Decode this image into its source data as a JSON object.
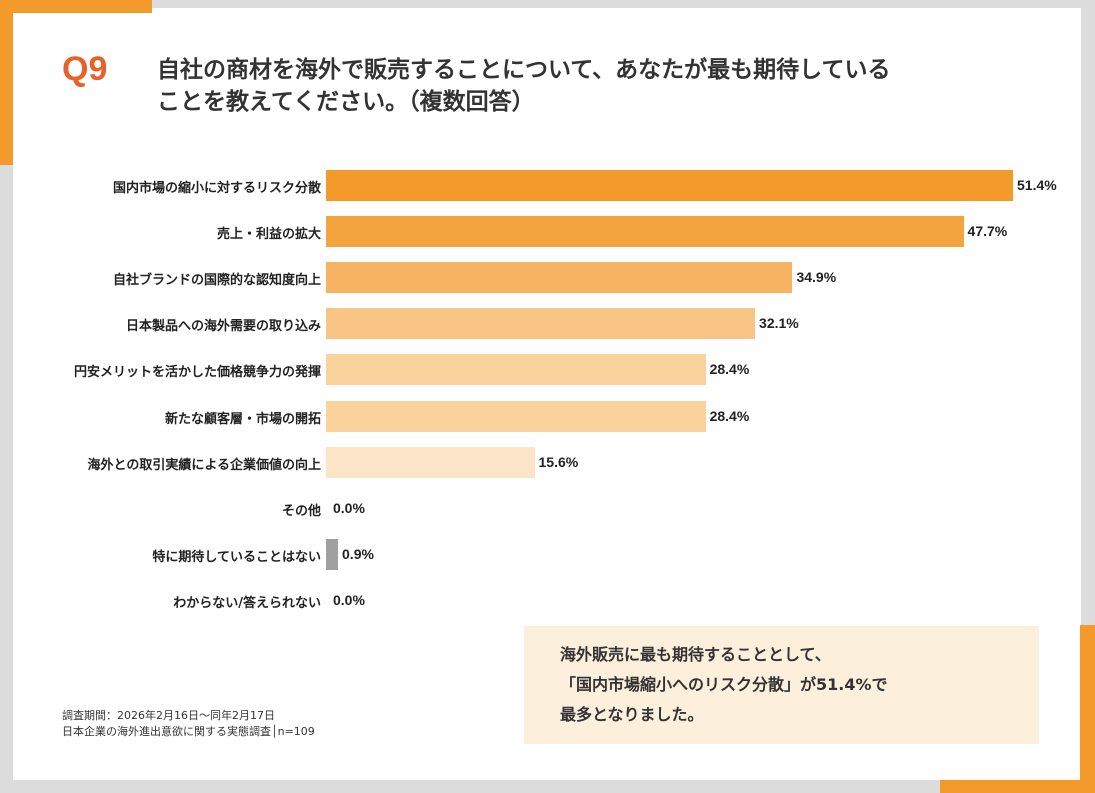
{
  "question_number": "Q9",
  "title_line1": "自社の商材を海外で販売することについて、あなたが最も期待している",
  "title_line2": "ことを教えてください。（複数回答）",
  "chart_data": {
    "type": "bar",
    "orientation": "horizontal",
    "categories": [
      "国内市場の縮小に対するリスク分散",
      "売上・利益の拡大",
      "自社ブランドの国際的な認知度向上",
      "日本製品への海外需要の取り込み",
      "円安メリットを活かした価格競争力の発揮",
      "新たな顧客層・市場の開拓",
      "海外との取引実績による企業価値の向上",
      "その他",
      "特に期待していることはない",
      "わからない/答えられない"
    ],
    "values": [
      51.4,
      47.7,
      34.9,
      32.1,
      28.4,
      28.4,
      15.6,
      0.0,
      0.9,
      0.0
    ],
    "value_labels": [
      "51.4%",
      "47.7%",
      "34.9%",
      "32.1%",
      "28.4%",
      "28.4%",
      "15.6%",
      "0.0%",
      "0.9%",
      "0.0%"
    ],
    "colors": [
      "#f39a2b",
      "#f4a43f",
      "#f6b463",
      "#f8c585",
      "#f9d29c",
      "#f9d29c",
      "#fce5c6",
      "#f9d29c",
      "#a0a0a0",
      "#f9d29c"
    ],
    "unit": "%",
    "grid": false,
    "legend": "none"
  },
  "footnote_line1": "調査期間：2026年2月16日～同年2月17日",
  "footnote_line2": "日本企業の海外進出意欲に関する実態調査│n=109",
  "summary_line1": "海外販売に最も期待することとして、",
  "summary_line2": "「国内市場縮小へのリスク分散」が51.4%で",
  "summary_line3": "最多となりました。",
  "accent_color": "#f39a2b"
}
